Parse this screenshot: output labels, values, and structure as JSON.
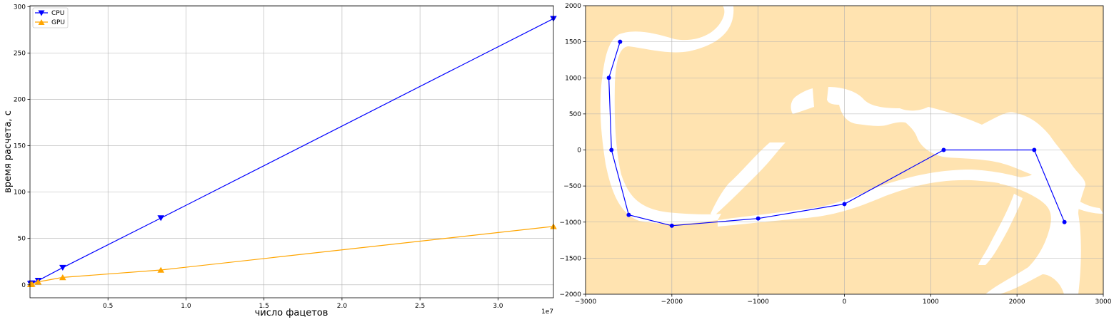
{
  "colors": {
    "cpu": "#0000ff",
    "gpu": "#ffa500",
    "land": "#ffe3b0",
    "grid": "#b0b0b0",
    "path": "#0000ff"
  },
  "chart_data": [
    {
      "type": "line",
      "xlabel": "число фацетов",
      "ylabel": "время расчета, с",
      "x_offset_text": "1e7",
      "xlim": [
        0,
        33554432
      ],
      "ylim": [
        -14,
        301
      ],
      "x_ticks": [
        {
          "value": 5000000,
          "label": "0.5"
        },
        {
          "value": 10000000,
          "label": "1.0"
        },
        {
          "value": 15000000,
          "label": "1.5"
        },
        {
          "value": 20000000,
          "label": "2.0"
        },
        {
          "value": 25000000,
          "label": "2.5"
        },
        {
          "value": 30000000,
          "label": "3.0"
        }
      ],
      "y_ticks": [
        0,
        50,
        100,
        150,
        200,
        250,
        300
      ],
      "grid": true,
      "legend": "top-left",
      "series": [
        {
          "name": "CPU",
          "marker": "triangle-down",
          "color": "#0000ff",
          "x": [
            32768,
            131072,
            524288,
            2097152,
            8388608,
            33554432
          ],
          "y": [
            1.2,
            1.8,
            4.6,
            18.5,
            72,
            287
          ]
        },
        {
          "name": "GPU",
          "marker": "triangle-up",
          "color": "#ffa500",
          "x": [
            32768,
            131072,
            524288,
            2097152,
            8388608,
            33554432
          ],
          "y": [
            0.5,
            0.8,
            3.2,
            8,
            16,
            63
          ]
        }
      ]
    },
    {
      "type": "map",
      "xlim": [
        -3000,
        3000
      ],
      "ylim": [
        -2000,
        2000
      ],
      "x_ticks": [
        {
          "value": -3000,
          "label": "−3000"
        },
        {
          "value": -2000,
          "label": "−2000"
        },
        {
          "value": -1000,
          "label": "−1000"
        },
        {
          "value": 0,
          "label": "0"
        },
        {
          "value": 1000,
          "label": "1000"
        },
        {
          "value": 2000,
          "label": "2000"
        },
        {
          "value": 3000,
          "label": "3000"
        }
      ],
      "y_ticks": [
        {
          "value": 2000,
          "label": "2000"
        },
        {
          "value": 1500,
          "label": "1500"
        },
        {
          "value": 1000,
          "label": "1000"
        },
        {
          "value": 500,
          "label": "500"
        },
        {
          "value": 0,
          "label": "0"
        },
        {
          "value": -500,
          "label": "−500"
        },
        {
          "value": -1000,
          "label": "−1000"
        },
        {
          "value": -1500,
          "label": "−1500"
        },
        {
          "value": -2000,
          "label": "−2000"
        }
      ],
      "grid": true,
      "background": "land with white water channels",
      "path": {
        "x": [
          -2600,
          -2730,
          -2700,
          -2500,
          -2000,
          -1000,
          0,
          1150,
          2200,
          2550
        ],
        "y": [
          1500,
          1000,
          0,
          -900,
          -1050,
          -950,
          -750,
          0,
          0,
          -1000
        ]
      }
    }
  ]
}
